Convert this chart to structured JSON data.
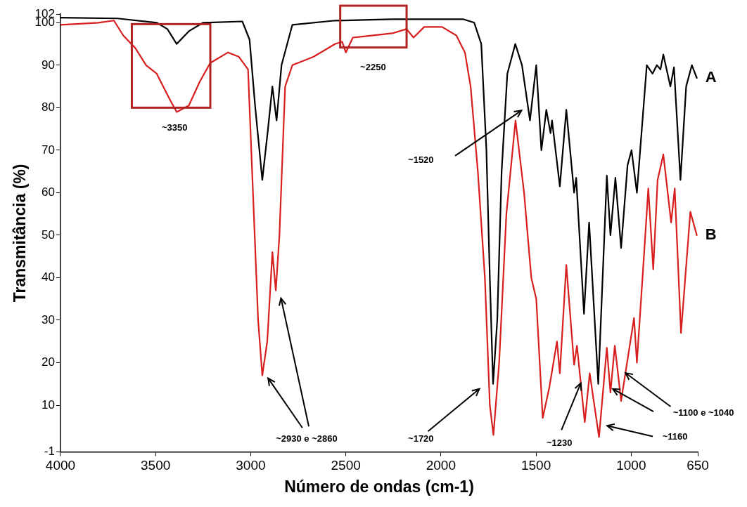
{
  "chart_data": {
    "type": "line",
    "xlabel": "Número de ondas (cm-1)",
    "ylabel": "Transmitância (%)",
    "xlim": [
      4000,
      650
    ],
    "xticks": [
      4000,
      3500,
      3000,
      2500,
      2000,
      1500,
      1000,
      650
    ],
    "ylim": [
      -1,
      102
    ],
    "yticks": [
      -1,
      10,
      20,
      30,
      40,
      50,
      60,
      70,
      80,
      90,
      100,
      102
    ],
    "grid": false,
    "legend": false,
    "marker": "none",
    "line_style": "solid",
    "series": [
      {
        "name": "A",
        "color": "#000000",
        "x": [
          4000,
          3700,
          3494,
          3438,
          3389,
          3325,
          3250,
          3044,
          3006,
          2976,
          2939,
          2909,
          2886,
          2864,
          2838,
          2781,
          2556,
          2256,
          1881,
          1825,
          1788,
          1761,
          1743,
          1726,
          1704,
          1681,
          1651,
          1609,
          1574,
          1532,
          1499,
          1472,
          1446,
          1424,
          1416,
          1375,
          1341,
          1300,
          1289,
          1248,
          1221,
          1173,
          1128,
          1109,
          1083,
          1053,
          1019,
          998,
          970,
          918,
          888,
          865,
          846,
          831,
          794,
          775,
          741,
          711,
          681,
          655
        ],
        "values": [
          101.2,
          101,
          100,
          98.5,
          95,
          98,
          100,
          100.3,
          96,
          80,
          63,
          75,
          85,
          77,
          90,
          99.5,
          100.5,
          100.8,
          100.8,
          100,
          95,
          70,
          40,
          15,
          30,
          65,
          88,
          95,
          90,
          77,
          90,
          70,
          79.5,
          74,
          77,
          61.5,
          79.5,
          60,
          63.5,
          31.5,
          53,
          15,
          64,
          50,
          63.5,
          47,
          66.5,
          70,
          60,
          90,
          88,
          90,
          89,
          92.5,
          85,
          89.5,
          63,
          85,
          90,
          87
        ]
      },
      {
        "name": "B",
        "color": "#d71f1f",
        "x": [
          4000,
          3801,
          3719,
          3670,
          3606,
          3550,
          3494,
          3426,
          3389,
          3325,
          3269,
          3213,
          3119,
          3063,
          3014,
          2988,
          2961,
          2939,
          2913,
          2886,
          2868,
          2849,
          2819,
          2781,
          2669,
          2556,
          2519,
          2500,
          2463,
          2256,
          2181,
          2144,
          2088,
          1994,
          1919,
          1874,
          1844,
          1806,
          1769,
          1743,
          1724,
          1694,
          1656,
          1608,
          1563,
          1525,
          1499,
          1465,
          1431,
          1390,
          1375,
          1341,
          1300,
          1285,
          1244,
          1218,
          1169,
          1128,
          1109,
          1086,
          1053,
          985,
          970,
          933,
          910,
          884,
          861,
          831,
          790,
          771,
          738,
          689,
          655
        ],
        "values": [
          99.5,
          100,
          100.5,
          97,
          94,
          90,
          88,
          82,
          79,
          80.5,
          86,
          90.5,
          93,
          92,
          89,
          60,
          30,
          17,
          25,
          46,
          37,
          50,
          85,
          90,
          92,
          95,
          95.5,
          93,
          96.5,
          97.5,
          98.5,
          96.5,
          99,
          99,
          97,
          93,
          85,
          65,
          40,
          10,
          3,
          20,
          55,
          77,
          60,
          40,
          35,
          7,
          14,
          25,
          17.5,
          43,
          19.5,
          24,
          6,
          17.5,
          2.5,
          23.5,
          13,
          24,
          11,
          30.5,
          20,
          45,
          61,
          42,
          63,
          69,
          53,
          61,
          27,
          55.5,
          50
        ]
      }
    ],
    "annotations": [
      "~3350",
      "~2250",
      "~1520",
      "~2930 e ~2860",
      "~1720",
      {
        "text": "~1230",
        "x": 1265,
        "y": 15.2
      },
      "~1160",
      {
        "text": "~1100 e ~1040",
        "x": 1030,
        "y": 17.6
      }
    ]
  }
}
